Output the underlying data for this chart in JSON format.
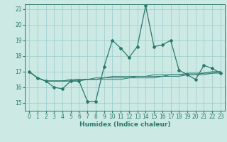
{
  "title": "",
  "xlabel": "Humidex (Indice chaleur)",
  "background_color": "#cce9e4",
  "line_color": "#2a7a6a",
  "grid_color": "#99cccc",
  "xlim": [
    -0.5,
    23.5
  ],
  "ylim": [
    14.5,
    21.3
  ],
  "yticks": [
    15,
    16,
    17,
    18,
    19,
    20,
    21
  ],
  "xticks": [
    0,
    1,
    2,
    3,
    4,
    5,
    6,
    7,
    8,
    9,
    10,
    11,
    12,
    13,
    14,
    15,
    16,
    17,
    18,
    19,
    20,
    21,
    22,
    23
  ],
  "series_main": [
    17.0,
    16.6,
    16.4,
    16.0,
    15.9,
    16.4,
    16.4,
    15.1,
    15.1,
    17.3,
    19.0,
    18.5,
    17.9,
    18.6,
    21.2,
    18.6,
    18.7,
    19.0,
    17.1,
    16.8,
    16.5,
    17.4,
    17.2,
    16.9
  ],
  "series_smooth": [
    [
      17.0,
      16.6,
      16.4,
      16.4,
      16.4,
      16.5,
      16.5,
      16.5,
      16.6,
      16.6,
      16.7,
      16.7,
      16.7,
      16.7,
      16.7,
      16.8,
      16.8,
      16.8,
      16.8,
      16.9,
      16.9,
      16.9,
      17.0,
      17.0
    ],
    [
      17.0,
      16.6,
      16.4,
      16.4,
      16.4,
      16.4,
      16.5,
      16.5,
      16.5,
      16.6,
      16.6,
      16.6,
      16.6,
      16.7,
      16.7,
      16.7,
      16.7,
      16.8,
      16.8,
      16.8,
      16.8,
      16.9,
      16.9,
      17.0
    ],
    [
      17.0,
      16.6,
      16.4,
      16.4,
      16.4,
      16.4,
      16.4,
      16.5,
      16.5,
      16.5,
      16.5,
      16.5,
      16.6,
      16.6,
      16.6,
      16.6,
      16.7,
      16.7,
      16.7,
      16.8,
      16.8,
      16.8,
      16.9,
      16.9
    ]
  ],
  "xlabel_fontsize": 6.5,
  "tick_fontsize": 5.5
}
